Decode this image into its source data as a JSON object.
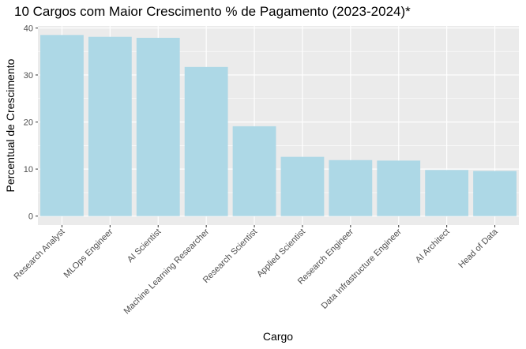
{
  "chart_data": {
    "type": "bar",
    "title": "10 Cargos com Maior Crescimento % de Pagamento (2023-2024)*",
    "xlabel": "Cargo",
    "ylabel": "Percentual de Crescimento",
    "categories": [
      "Research Analyst",
      "MLOps Engineer",
      "AI Scientist",
      "Machine Learning Researcher",
      "Research Scientist",
      "Applied Scientist",
      "Research Engineer",
      "Data Infrastructure Engineer",
      "AI Architect",
      "Head of Data"
    ],
    "values": [
      38.5,
      38.1,
      37.9,
      31.7,
      19.1,
      12.6,
      11.9,
      11.8,
      9.8,
      9.6
    ],
    "ylim": [
      -1.9,
      40.4
    ],
    "yticks": [
      "0",
      "10",
      "20",
      "30",
      "40"
    ],
    "grid": true,
    "colors": {
      "bar": "#add8e6",
      "panel": "#ebebeb",
      "grid_major": "#ffffff",
      "tick_text": "#4d4d4d"
    }
  }
}
